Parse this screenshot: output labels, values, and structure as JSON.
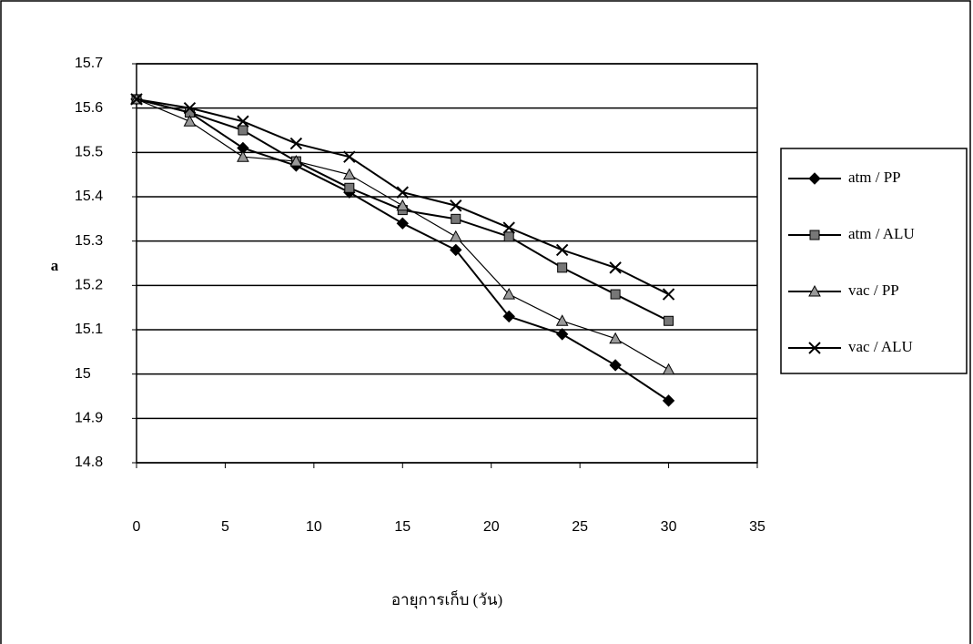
{
  "chart_data": {
    "type": "line",
    "y_label": "a",
    "x_label": "อายุการเก็บ (วัน)",
    "x": [
      0,
      3,
      6,
      9,
      12,
      15,
      18,
      21,
      24,
      27,
      30
    ],
    "series": [
      {
        "name": "atm / PP",
        "color": "#000000",
        "marker": "diamond",
        "values": [
          15.62,
          15.59,
          15.51,
          15.47,
          15.41,
          15.34,
          15.28,
          15.13,
          15.09,
          15.02,
          14.94
        ]
      },
      {
        "name": "atm / ALU",
        "color": "#000000",
        "marker": "square",
        "values": [
          15.62,
          15.59,
          15.55,
          15.48,
          15.42,
          15.37,
          15.35,
          15.31,
          15.24,
          15.18,
          15.12
        ]
      },
      {
        "name": "vac / PP",
        "color": "#000000",
        "marker": "triangle",
        "values": [
          15.62,
          15.57,
          15.49,
          15.48,
          15.45,
          15.38,
          15.31,
          15.18,
          15.12,
          15.08,
          15.01
        ]
      },
      {
        "name": "vac / ALU",
        "color": "#000000",
        "marker": "x",
        "values": [
          15.62,
          15.6,
          15.57,
          15.52,
          15.49,
          15.41,
          15.38,
          15.33,
          15.28,
          15.24,
          15.18
        ]
      }
    ],
    "xlim": [
      0,
      35
    ],
    "xticks": [
      0,
      5,
      10,
      15,
      20,
      25,
      30,
      35
    ],
    "ylim": [
      14.8,
      15.7
    ],
    "yticks": [
      14.8,
      14.9,
      15,
      15.1,
      15.2,
      15.3,
      15.4,
      15.5,
      15.6,
      15.7
    ],
    "grid": true,
    "legend": "right"
  }
}
